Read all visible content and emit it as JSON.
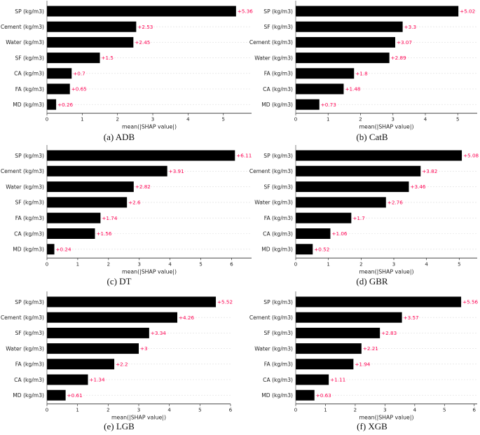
{
  "colors": {
    "bar": "#000000",
    "value_label": "#ff0051",
    "grid": "#dddddd",
    "axis": "#333333"
  },
  "chart_data": [
    {
      "type": "bar",
      "orientation": "horizontal",
      "caption": "(a) ADB",
      "xlabel": "mean(|SHAP value|)",
      "xlim": [
        0,
        5.8
      ],
      "xticks": [
        "0",
        "1",
        "2",
        "3",
        "4",
        "5"
      ],
      "categories": [
        "SP (kg/m3)",
        "Cement (kg/m3)",
        "Water (kg/m3)",
        "SF (kg/m3)",
        "CA (kg/m3)",
        "FA (kg/m3)",
        "MD (kg/m3)"
      ],
      "values": [
        5.36,
        2.53,
        2.45,
        1.5,
        0.7,
        0.65,
        0.26
      ],
      "value_labels": [
        "+5.36",
        "+2.53",
        "+2.45",
        "+1.5",
        "+0.7",
        "+0.65",
        "+0.26"
      ]
    },
    {
      "type": "bar",
      "orientation": "horizontal",
      "caption": "(b) CatB",
      "xlabel": "mean(|SHAP value|)",
      "xlim": [
        0,
        5.6
      ],
      "xticks": [
        "0",
        "1",
        "2",
        "3",
        "4",
        "5"
      ],
      "categories": [
        "SP (kg/m3)",
        "SF (kg/m3)",
        "Cement (kg/m3)",
        "Water (kg/m3)",
        "FA (kg/m3)",
        "CA (kg/m3)",
        "MD (kg/m3)"
      ],
      "values": [
        5.02,
        3.3,
        3.07,
        2.89,
        1.8,
        1.48,
        0.73
      ],
      "value_labels": [
        "+5.02",
        "+3.3",
        "+3.07",
        "+2.89",
        "+1.8",
        "+1.48",
        "+0.73"
      ]
    },
    {
      "type": "bar",
      "orientation": "horizontal",
      "caption": "(c) DT",
      "xlabel": "mean(|SHAP value|)",
      "xlim": [
        0,
        6.65
      ],
      "xticks": [
        "0",
        "1",
        "2",
        "3",
        "4",
        "5",
        "6"
      ],
      "categories": [
        "SP (kg/m3)",
        "Cement (kg/m3)",
        "Water (kg/m3)",
        "SF (kg/m3)",
        "FA (kg/m3)",
        "CA (kg/m3)",
        "MD (kg/m3)"
      ],
      "values": [
        6.11,
        3.91,
        2.82,
        2.6,
        1.74,
        1.56,
        0.24
      ],
      "value_labels": [
        "+6.11",
        "+3.91",
        "+2.82",
        "+2.6",
        "+1.74",
        "+1.56",
        "+0.24"
      ]
    },
    {
      "type": "bar",
      "orientation": "horizontal",
      "caption": "(d) GBR",
      "xlabel": "mean(|SHAP value|)",
      "xlim": [
        0,
        5.55
      ],
      "xticks": [
        "0",
        "1",
        "2",
        "3",
        "4",
        "5"
      ],
      "categories": [
        "SP (kg/m3)",
        "Cement (kg/m3)",
        "SF (kg/m3)",
        "Water (kg/m3)",
        "FA (kg/m3)",
        "CA (kg/m3)",
        "MD (kg/m3)"
      ],
      "values": [
        5.08,
        3.82,
        3.46,
        2.76,
        1.7,
        1.06,
        0.52
      ],
      "value_labels": [
        "+5.08",
        "+3.82",
        "+3.46",
        "+2.76",
        "+1.7",
        "+1.06",
        "+0.52"
      ]
    },
    {
      "type": "bar",
      "orientation": "horizontal",
      "caption": "(e) LGB",
      "xlabel": "mean(|SHAP value|)",
      "xlim": [
        0,
        6.0
      ],
      "xticks": [
        "0",
        "1",
        "2",
        "3",
        "4",
        "5",
        "6"
      ],
      "categories": [
        "SP (kg/m3)",
        "Cement (kg/m3)",
        "SF (kg/m3)",
        "Water (kg/m3)",
        "FA (kg/m3)",
        "CA (kg/m3)",
        "MD (kg/m3)"
      ],
      "values": [
        5.52,
        4.26,
        3.34,
        3.0,
        2.2,
        1.34,
        0.61
      ],
      "value_labels": [
        "+5.52",
        "+4.26",
        "+3.34",
        "+3",
        "+2.2",
        "+1.34",
        "+0.61"
      ]
    },
    {
      "type": "bar",
      "orientation": "horizontal",
      "caption": "(f) XGB",
      "xlabel": "mean(|SHAP value|)",
      "xlim": [
        0,
        6.1
      ],
      "xticks": [
        "0",
        "1",
        "2",
        "3",
        "4",
        "5",
        "6"
      ],
      "categories": [
        "SP (kg/m3)",
        "Cement (kg/m3)",
        "SF (kg/m3)",
        "Water (kg/m3)",
        "FA (kg/m3)",
        "CA (kg/m3)",
        "MD (kg/m3)"
      ],
      "values": [
        5.56,
        3.57,
        2.83,
        2.21,
        1.94,
        1.11,
        0.63
      ],
      "value_labels": [
        "+5.56",
        "+3.57",
        "+2.83",
        "+2.21",
        "+1.94",
        "+1.11",
        "+0.63"
      ]
    }
  ]
}
